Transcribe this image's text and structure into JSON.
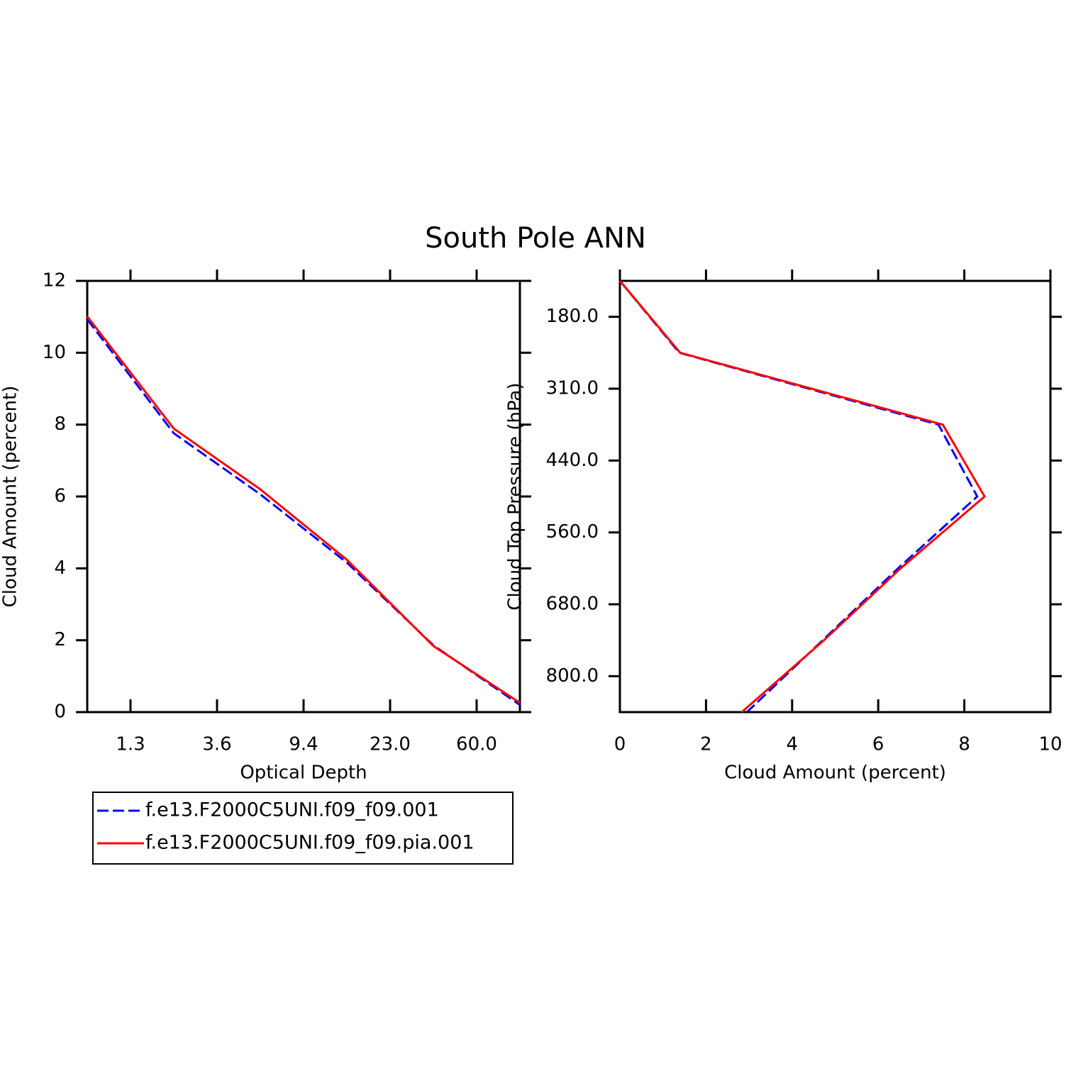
{
  "title": "South Pole ANN",
  "chart_data": [
    {
      "type": "line",
      "x_label": "Optical Depth",
      "y_label": "Cloud Amount (percent)",
      "x": [
        0,
        1,
        2,
        3,
        4,
        5
      ],
      "xlim": [
        0,
        5
      ],
      "xticks": [
        {
          "value": 0.5,
          "label": "1.3"
        },
        {
          "value": 1.5,
          "label": "3.6"
        },
        {
          "value": 2.5,
          "label": "9.4"
        },
        {
          "value": 3.5,
          "label": "23.0"
        },
        {
          "value": 4.5,
          "label": "60.0"
        }
      ],
      "ylim": [
        0,
        12
      ],
      "yticks": [
        0,
        2,
        4,
        6,
        8,
        10,
        12
      ],
      "legend": "below",
      "series": [
        {
          "name": "f.e13.F2000C5UNI.f09_f09.001",
          "color": "#0000ff",
          "line_style": "dashed",
          "values": [
            10.93,
            7.76,
            6.06,
            4.16,
            1.86,
            0.2
          ]
        },
        {
          "name": "f.e13.F2000C5UNI.f09_f09.pia.001",
          "color": "#ff0000",
          "line_style": "solid",
          "values": [
            11.01,
            7.89,
            6.2,
            4.24,
            1.84,
            0.26
          ]
        }
      ]
    },
    {
      "type": "line",
      "orientation": "horizontal",
      "x_label": "Cloud Amount (percent)",
      "y_label": "Cloud Top Pressure (hPa)",
      "xlim": [
        0,
        10
      ],
      "xticks": [
        0,
        2,
        4,
        6,
        8,
        10
      ],
      "y": [
        0,
        1,
        2,
        3,
        4,
        5,
        6
      ],
      "ylim": [
        6,
        0
      ],
      "yticks": [
        {
          "value": 0.5,
          "label": "180.0"
        },
        {
          "value": 1.5,
          "label": "310.0"
        },
        {
          "value": 2.5,
          "label": "440.0"
        },
        {
          "value": 3.5,
          "label": "560.0"
        },
        {
          "value": 4.5,
          "label": "680.0"
        },
        {
          "value": 5.5,
          "label": "800.0"
        }
      ],
      "series": [
        {
          "color": "#0000ff",
          "line_style": "dashed",
          "values": [
            0,
            1.38,
            7.4,
            8.3,
            6.46,
            4.71,
            2.95
          ]
        },
        {
          "color": "#ff0000",
          "line_style": "solid",
          "values": [
            0,
            1.4,
            7.5,
            8.47,
            6.52,
            4.74,
            2.83
          ]
        }
      ]
    }
  ]
}
